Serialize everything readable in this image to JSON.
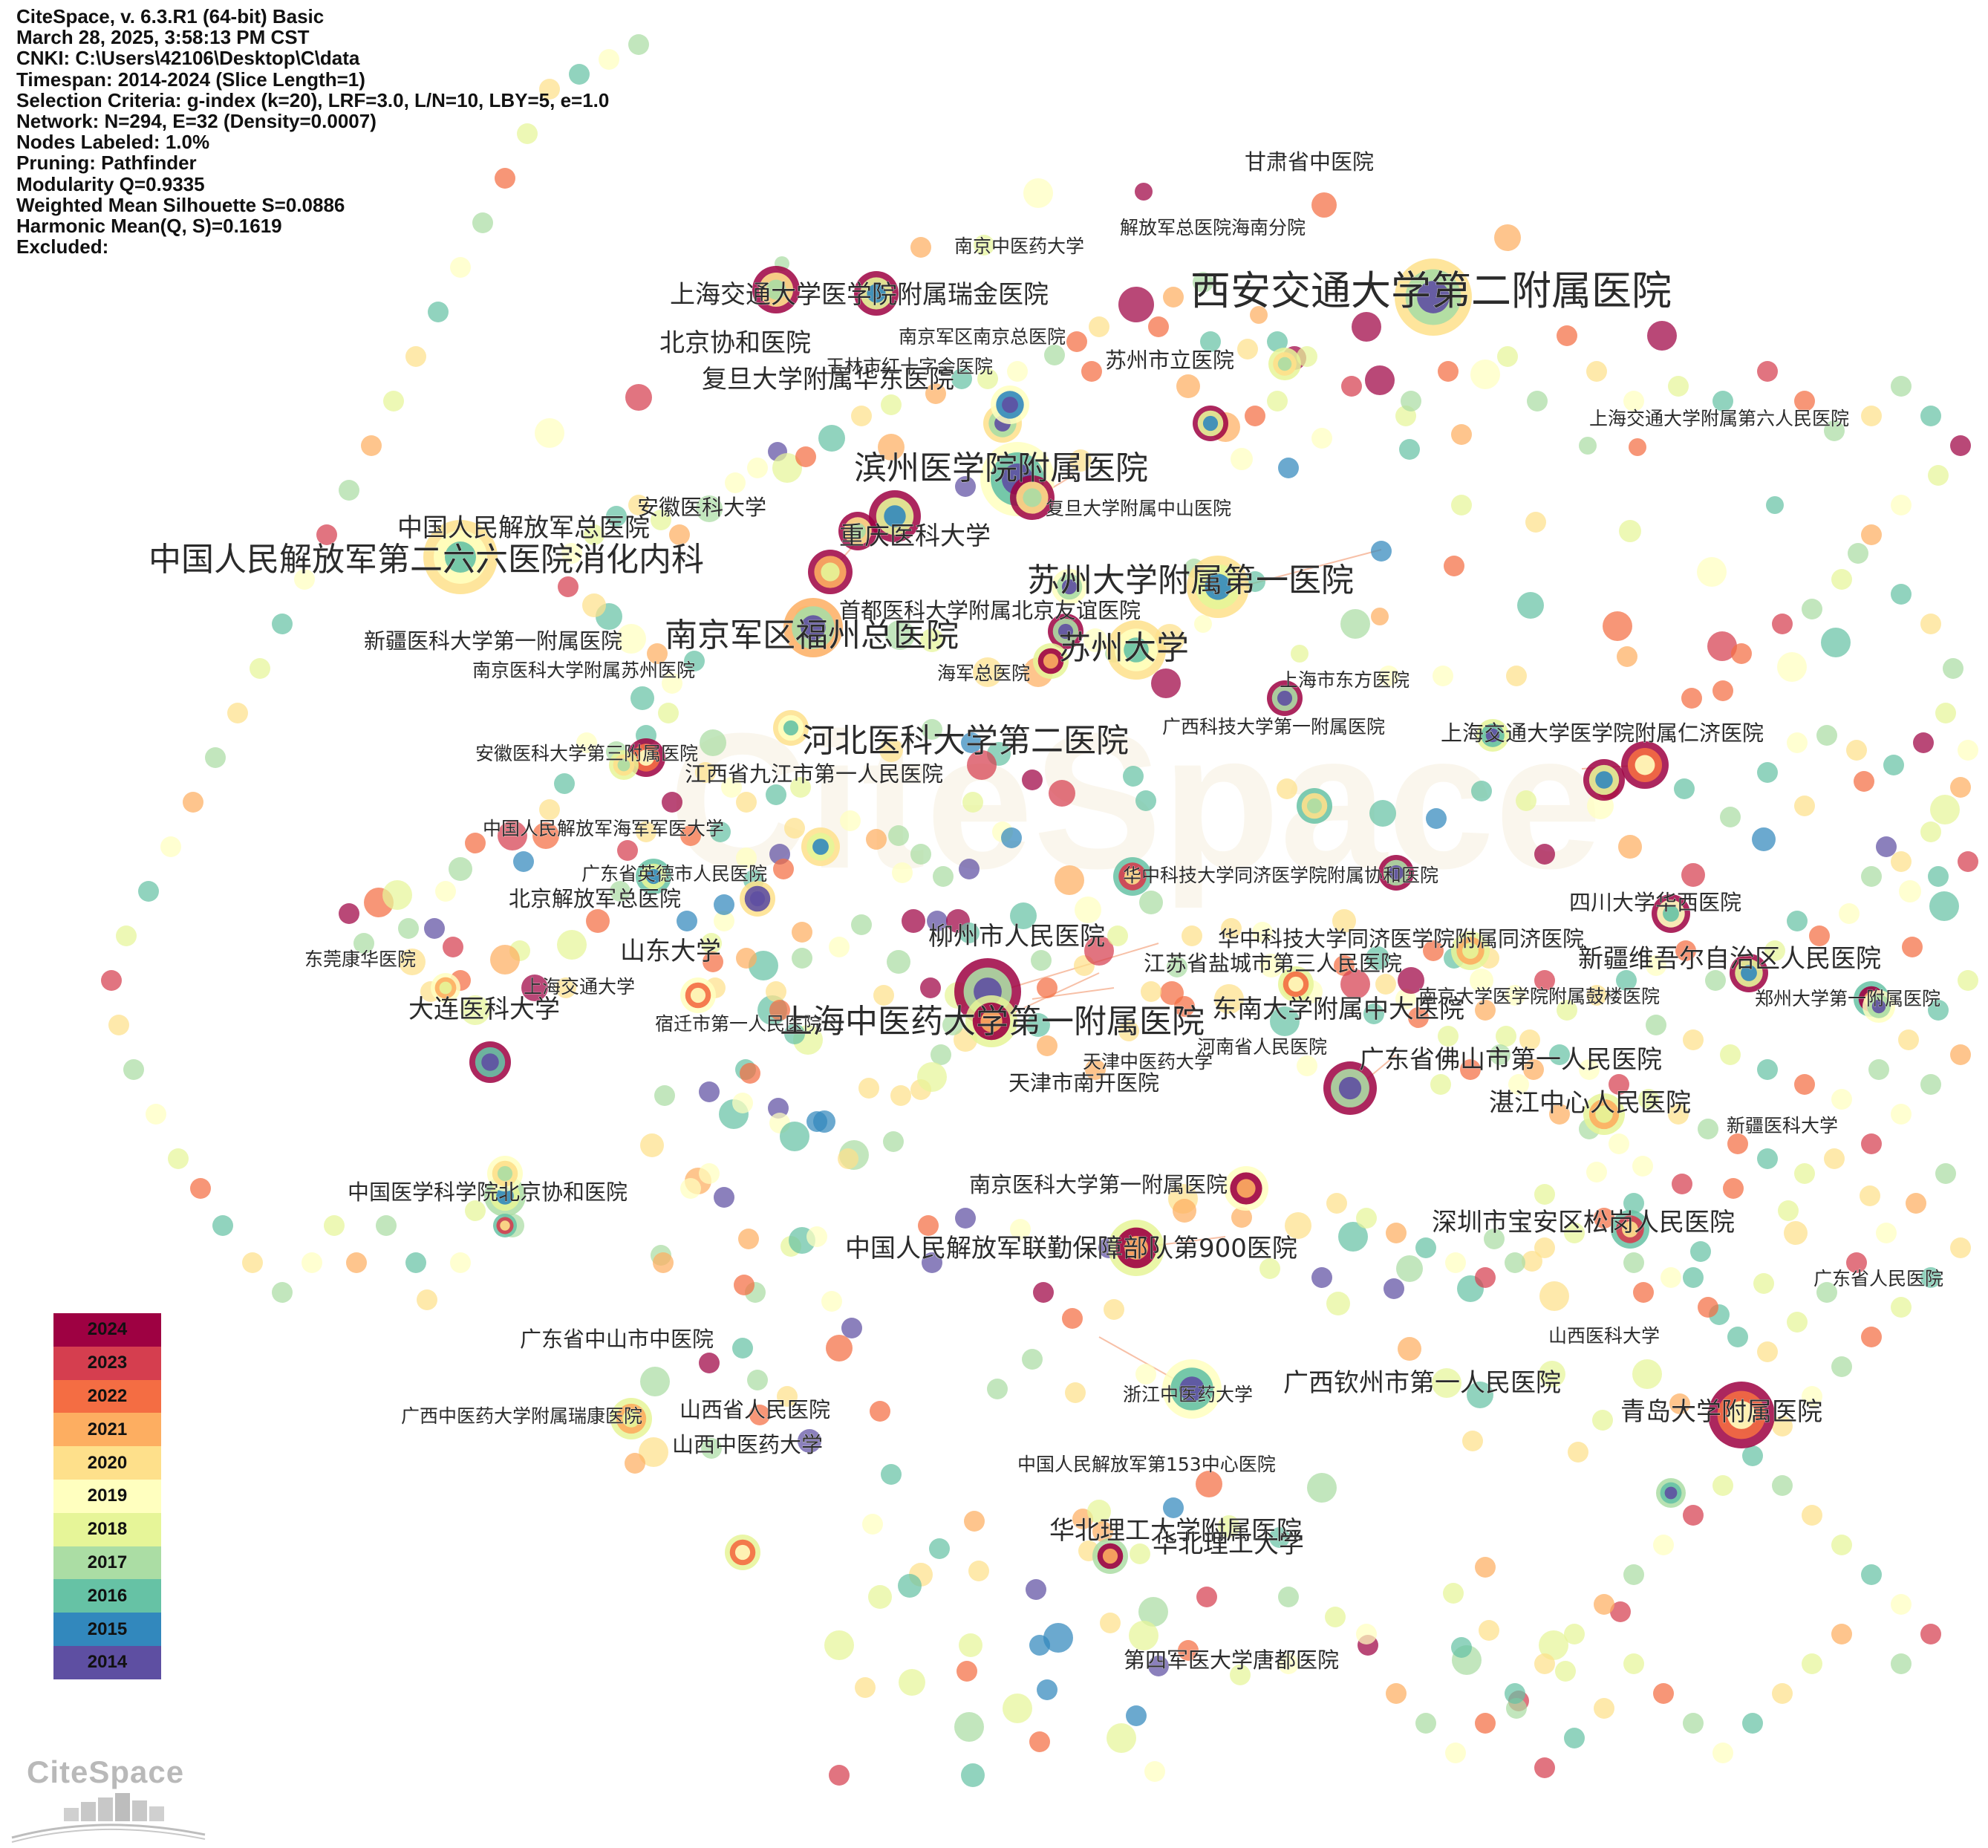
{
  "info": {
    "lines": [
      "CiteSpace, v. 6.3.R1 (64-bit) Basic",
      "March 28, 2025, 3:58:13 PM CST",
      "CNKI: C:\\Users\\42106\\Desktop\\C\\data",
      "Timespan: 2014-2024 (Slice Length=1)",
      "Selection Criteria: g-index (k=20), LRF=3.0, L/N=10, LBY=5, e=1.0",
      "Network: N=294, E=32 (Density=0.0007)",
      "Nodes Labeled: 1.0%",
      "Pruning: Pathfinder",
      "Modularity Q=0.9335",
      "Weighted Mean Silhouette S=0.0886",
      "Harmonic Mean(Q, S)=0.1619",
      "Excluded:"
    ]
  },
  "watermark": "CiteSpace",
  "legend": {
    "years": [
      {
        "label": "2024",
        "color": "#9e0142"
      },
      {
        "label": "2023",
        "color": "#d53e4f"
      },
      {
        "label": "2022",
        "color": "#f46d43"
      },
      {
        "label": "2021",
        "color": "#fdae61"
      },
      {
        "label": "2020",
        "color": "#fee08b"
      },
      {
        "label": "2019",
        "color": "#ffffbf"
      },
      {
        "label": "2018",
        "color": "#e6f598"
      },
      {
        "label": "2017",
        "color": "#abdda4"
      },
      {
        "label": "2016",
        "color": "#66c2a5"
      },
      {
        "label": "2015",
        "color": "#3288bd"
      },
      {
        "label": "2014",
        "color": "#5e4fa2"
      }
    ]
  },
  "logo": {
    "text": "CiteSpace"
  },
  "labels": [
    {
      "text": "西安交通大学第二附属医院",
      "size": "xl"
    },
    {
      "text": "甘肃省中医院",
      "size": "s"
    },
    {
      "text": "南京中医药大学",
      "size": "xs"
    },
    {
      "text": "解放军总医院海南分院",
      "size": "xs"
    },
    {
      "text": "上海交通大学医学院附属瑞金医院",
      "size": "m"
    },
    {
      "text": "北京协和医院",
      "size": "m"
    },
    {
      "text": "南京军区南京总医院",
      "size": "xs"
    },
    {
      "text": "玉林市红十字会医院",
      "size": "xs"
    },
    {
      "text": "苏州市立医院",
      "size": "s"
    },
    {
      "text": "复旦大学附属华东医院",
      "size": "m"
    },
    {
      "text": "上海交通大学附属第六人民医院",
      "size": "xs"
    },
    {
      "text": "滨州医学院附属医院",
      "size": "l"
    },
    {
      "text": "安徽医科大学",
      "size": "s"
    },
    {
      "text": "中国人民解放军总医院",
      "size": "m"
    },
    {
      "text": "复旦大学附属中山医院",
      "size": "xs"
    },
    {
      "text": "重庆医科大学",
      "size": "m"
    },
    {
      "text": "中国人民解放军第二六六医院消化内科",
      "size": "l"
    },
    {
      "text": "苏州大学附属第一医院",
      "size": "l"
    },
    {
      "text": "首都医科大学附属北京友谊医院",
      "size": "s"
    },
    {
      "text": "新疆医科大学第一附属医院",
      "size": "s"
    },
    {
      "text": "南京军区福州总医院",
      "size": "l"
    },
    {
      "text": "苏州大学",
      "size": "l"
    },
    {
      "text": "南京医科大学附属苏州医院",
      "size": "xs"
    },
    {
      "text": "海军总医院",
      "size": "xs"
    },
    {
      "text": "上海市东方医院",
      "size": "xs"
    },
    {
      "text": "河北医科大学第二医院",
      "size": "l"
    },
    {
      "text": "广西科技大学第一附属医院",
      "size": "xs"
    },
    {
      "text": "上海交通大学医学院附属仁济医院",
      "size": "s"
    },
    {
      "text": "安徽医科大学第三附属医院",
      "size": "xs"
    },
    {
      "text": "江西省九江市第一人民医院",
      "size": "s"
    },
    {
      "text": "中国人民解放军海军军医大学",
      "size": "xs"
    },
    {
      "text": "广东省英德市人民医院",
      "size": "xs"
    },
    {
      "text": "华中科技大学同济医学院附属协和医院",
      "size": "xs"
    },
    {
      "text": "北京解放军总医院",
      "size": "s"
    },
    {
      "text": "四川大学华西医院",
      "size": "s"
    },
    {
      "text": "柳州市人民医院",
      "size": "m"
    },
    {
      "text": "华中科技大学同济医学院附属同济医院",
      "size": "s"
    },
    {
      "text": "山东大学",
      "size": "m"
    },
    {
      "text": "江苏省盐城市第三人民医院",
      "size": "s"
    },
    {
      "text": "新疆维吾尔自治区人民医院",
      "size": "m"
    },
    {
      "text": "东莞康华医院",
      "size": "xs"
    },
    {
      "text": "上海交通大学",
      "size": "xs"
    },
    {
      "text": "南京大学医学院附属鼓楼医院",
      "size": "xs"
    },
    {
      "text": "郑州大学第一附属医院",
      "size": "xs"
    },
    {
      "text": "大连医科大学",
      "size": "m"
    },
    {
      "text": "宿迁市第一人民医院",
      "size": "xs"
    },
    {
      "text": "上海中医药大学第一附属医院",
      "size": "l"
    },
    {
      "text": "东南大学附属中大医院",
      "size": "m"
    },
    {
      "text": "河南省人民医院",
      "size": "xs"
    },
    {
      "text": "天津中医药大学",
      "size": "xs"
    },
    {
      "text": "广东省佛山市第一人民医院",
      "size": "m"
    },
    {
      "text": "天津市南开医院",
      "size": "s"
    },
    {
      "text": "湛江中心人民医院",
      "size": "m"
    },
    {
      "text": "新疆医科大学",
      "size": "xs"
    },
    {
      "text": "南京医科大学第一附属医院",
      "size": "s"
    },
    {
      "text": "中国医学科学院北京协和医院",
      "size": "s"
    },
    {
      "text": "深圳市宝安区松岗人民医院",
      "size": "m"
    },
    {
      "text": "中国人民解放军联勤保障部队第900医院",
      "size": "m"
    },
    {
      "text": "广东省人民医院",
      "size": "xs"
    },
    {
      "text": "山西医科大学",
      "size": "xs"
    },
    {
      "text": "广东省中山市中医院",
      "size": "s"
    },
    {
      "text": "浙江中医药大学",
      "size": "xs"
    },
    {
      "text": "广西钦州市第一人民医院",
      "size": "m"
    },
    {
      "text": "青岛大学附属医院",
      "size": "m"
    },
    {
      "text": "广西中医药大学附属瑞康医院",
      "size": "xs"
    },
    {
      "text": "山西省人民医院",
      "size": "s"
    },
    {
      "text": "山西中医药大学",
      "size": "s"
    },
    {
      "text": "中国人民解放军第153中心医院",
      "size": "xs"
    },
    {
      "text": "华北理工大学附属医院",
      "size": "m"
    },
    {
      "text": "华北理工大学",
      "size": "m"
    },
    {
      "text": "第四军医大学唐都医院",
      "size": "s"
    }
  ]
}
